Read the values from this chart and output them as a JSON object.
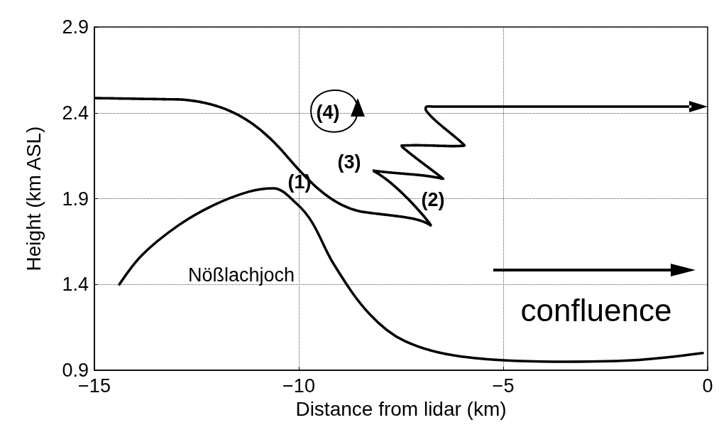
{
  "chart_data": {
    "type": "line",
    "xlabel": "Distance from lidar (km)",
    "ylabel": "Height (km ASL)",
    "xlim": [
      -15,
      0
    ],
    "xticks": [
      -15,
      -10,
      -5,
      0
    ],
    "ylim": [
      0.9,
      2.9
    ],
    "yticks": [
      0.9,
      1.4,
      1.9,
      2.4,
      2.9
    ],
    "grid": true,
    "line_style": "solid",
    "marker": "none",
    "series": [
      {
        "color": "#000000",
        "x": [
          -14.39,
          -13.84,
          -12.97,
          -12.1,
          -11.23,
          -10.62,
          -10.05,
          -9.67,
          -9.15,
          -8.28,
          -7.41,
          -6.02,
          -3.42,
          -1.68,
          -0.12
        ],
        "values": [
          1.4,
          1.57,
          1.74,
          1.86,
          1.94,
          1.96,
          1.87,
          1.76,
          1.52,
          1.23,
          1.07,
          0.98,
          0.95,
          0.96,
          1.0
        ]
      }
    ],
    "annotations": [
      "(1)",
      "(2)",
      "(3)",
      "(4)",
      "Nößlachjoch",
      "confluence"
    ]
  }
}
